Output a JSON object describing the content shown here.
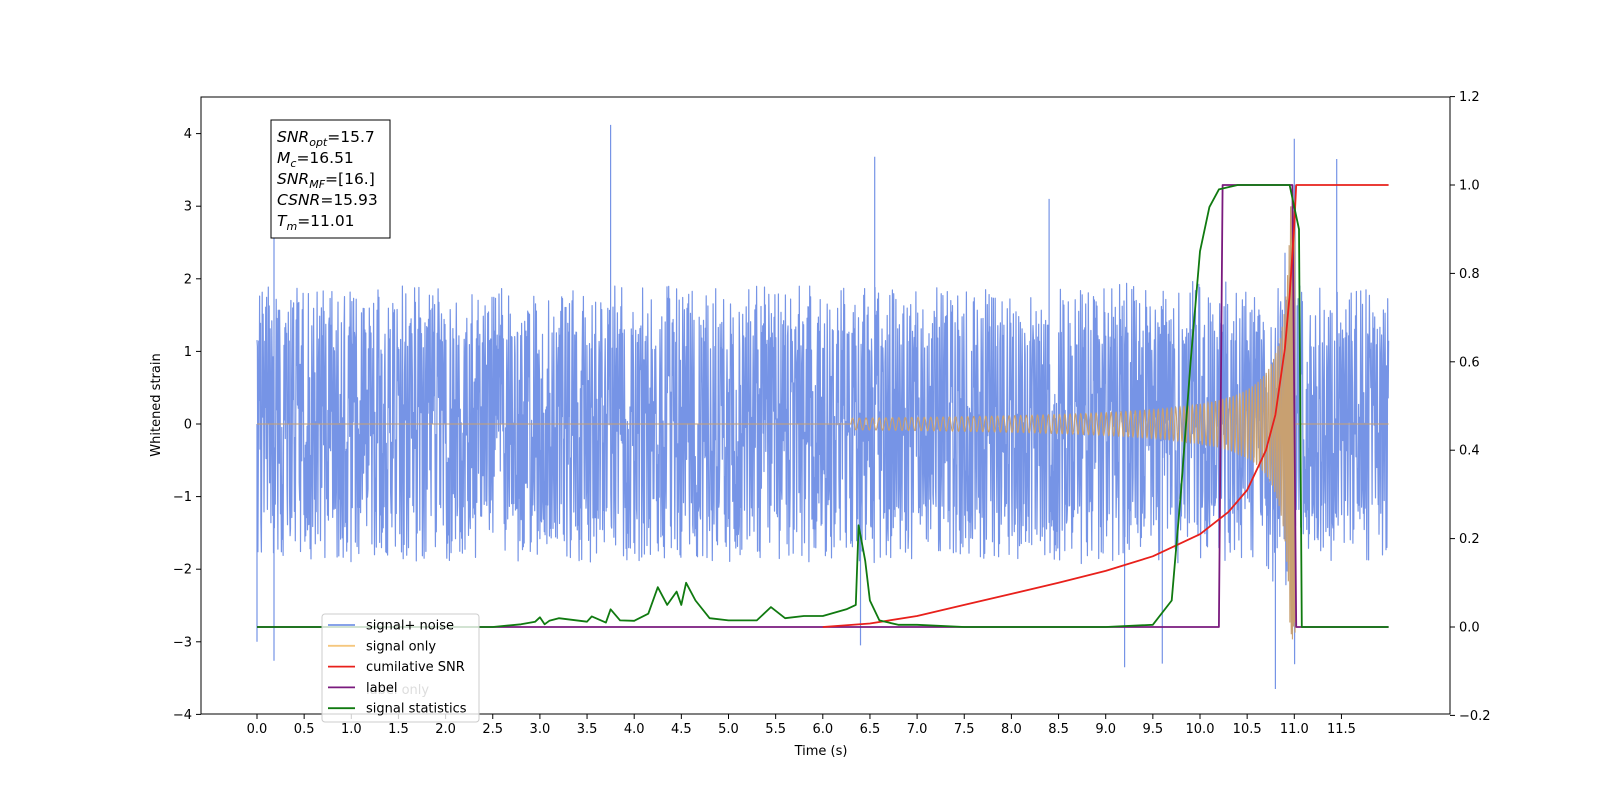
{
  "chart_data": {
    "type": "line",
    "xlabel": "Time (s)",
    "ylabel": "Whitened strain",
    "xlim": [
      -0.6,
      12.6
    ],
    "ylim": [
      -4,
      4.5
    ],
    "ylim_right": [
      -0.2,
      1.2
    ],
    "x_ticks": [
      "0.0",
      "0.5",
      "1.0",
      "1.5",
      "2.0",
      "2.5",
      "3.0",
      "3.5",
      "4.0",
      "4.5",
      "5.0",
      "5.5",
      "6.0",
      "6.5",
      "7.0",
      "7.5",
      "8.0",
      "8.5",
      "9.0",
      "9.5",
      "10.0",
      "10.5",
      "11.0",
      "11.5"
    ],
    "y_ticks_left": [
      "4",
      "3",
      "2",
      "1",
      "0",
      "−1",
      "−2",
      "−3",
      "−4"
    ],
    "y_ticks_right": [
      "1.2",
      "1.0",
      "0.8",
      "0.6",
      "0.4",
      "0.2",
      "0.0",
      "−0.2"
    ],
    "info_box": [
      {
        "base": "SNR",
        "sub": "opt",
        "value": "=15.7"
      },
      {
        "base": "M",
        "sub": "c",
        "value": "=16.51"
      },
      {
        "base": "SNR",
        "sub": "MF",
        "value": "=[16.]"
      },
      {
        "base": "CSNR",
        "sub": "",
        "value": "=15.93"
      },
      {
        "base": "T",
        "sub": "m",
        "value": "=11.01"
      }
    ],
    "legend": {
      "placement": "lower-left",
      "entries": [
        {
          "label": "signal+ noise",
          "color": "#7694e6"
        },
        {
          "label": "signal only",
          "color": "#f5c77e"
        },
        {
          "label": "cumilative SNR",
          "color": "#e8201b"
        },
        {
          "label": "label",
          "color": "#7a1a7e"
        },
        {
          "label": "signal statistics",
          "color": "#107a10"
        }
      ],
      "hidden_label": "label only"
    },
    "series": [
      {
        "name": "signal+ noise",
        "axis": "left",
        "color": "#7694e6",
        "x_range": [
          0.0,
          12.0
        ],
        "band": [
          -2.2,
          2.2
        ],
        "spikes": [
          [
            3.75,
            4.12
          ],
          [
            11.0,
            3.93
          ],
          [
            6.55,
            3.68
          ],
          [
            11.45,
            3.65
          ],
          [
            0.18,
            3.3
          ],
          [
            8.4,
            3.1
          ],
          [
            -0.0,
            -3.0
          ],
          [
            0.18,
            -3.26
          ],
          [
            10.8,
            -3.65
          ],
          [
            9.2,
            -3.35
          ],
          [
            9.6,
            -3.3
          ],
          [
            6.4,
            -3.05
          ]
        ]
      },
      {
        "name": "signal only",
        "axis": "left",
        "color": "#f5c77e",
        "chirp_start": 6.3,
        "merger": 11.01,
        "peak_amplitude": 3.0
      },
      {
        "name": "cumilative SNR",
        "axis": "right",
        "color": "#e8201b",
        "points": [
          [
            6.0,
            0.0
          ],
          [
            6.5,
            0.008
          ],
          [
            7.0,
            0.025
          ],
          [
            7.5,
            0.05
          ],
          [
            8.0,
            0.075
          ],
          [
            8.5,
            0.1
          ],
          [
            9.0,
            0.127
          ],
          [
            9.5,
            0.16
          ],
          [
            10.0,
            0.21
          ],
          [
            10.3,
            0.26
          ],
          [
            10.5,
            0.31
          ],
          [
            10.7,
            0.4
          ],
          [
            10.8,
            0.48
          ],
          [
            10.9,
            0.63
          ],
          [
            10.95,
            0.75
          ],
          [
            11.0,
            0.91
          ],
          [
            11.02,
            1.0
          ],
          [
            12.0,
            1.0
          ]
        ]
      },
      {
        "name": "label",
        "axis": "right",
        "color": "#7a1a7e",
        "points": [
          [
            0.0,
            0.0
          ],
          [
            10.2,
            0.0
          ],
          [
            10.24,
            1.0
          ],
          [
            10.98,
            1.0
          ],
          [
            11.02,
            0.0
          ],
          [
            12.0,
            0.0
          ]
        ]
      },
      {
        "name": "signal statistics",
        "axis": "right",
        "color": "#107a10",
        "points": [
          [
            0.0,
            0.0
          ],
          [
            2.0,
            0.0
          ],
          [
            2.5,
            0.0
          ],
          [
            2.8,
            0.006
          ],
          [
            2.95,
            0.012
          ],
          [
            3.0,
            0.022
          ],
          [
            3.05,
            0.006
          ],
          [
            3.1,
            0.014
          ],
          [
            3.2,
            0.02
          ],
          [
            3.5,
            0.012
          ],
          [
            3.55,
            0.024
          ],
          [
            3.7,
            0.01
          ],
          [
            3.75,
            0.04
          ],
          [
            3.85,
            0.015
          ],
          [
            4.0,
            0.014
          ],
          [
            4.15,
            0.03
          ],
          [
            4.25,
            0.09
          ],
          [
            4.35,
            0.05
          ],
          [
            4.45,
            0.08
          ],
          [
            4.5,
            0.05
          ],
          [
            4.55,
            0.1
          ],
          [
            4.65,
            0.06
          ],
          [
            4.8,
            0.02
          ],
          [
            5.0,
            0.015
          ],
          [
            5.3,
            0.015
          ],
          [
            5.45,
            0.045
          ],
          [
            5.6,
            0.02
          ],
          [
            5.8,
            0.025
          ],
          [
            6.0,
            0.025
          ],
          [
            6.25,
            0.04
          ],
          [
            6.35,
            0.05
          ],
          [
            6.38,
            0.23
          ],
          [
            6.45,
            0.15
          ],
          [
            6.5,
            0.06
          ],
          [
            6.6,
            0.015
          ],
          [
            6.8,
            0.005
          ],
          [
            7.0,
            0.005
          ],
          [
            7.5,
            0.0
          ],
          [
            9.0,
            0.0
          ],
          [
            9.5,
            0.005
          ],
          [
            9.7,
            0.06
          ],
          [
            9.8,
            0.31
          ],
          [
            9.9,
            0.6
          ],
          [
            10.0,
            0.85
          ],
          [
            10.1,
            0.95
          ],
          [
            10.2,
            0.99
          ],
          [
            10.4,
            1.0
          ],
          [
            10.95,
            1.0
          ],
          [
            11.05,
            0.9
          ],
          [
            11.08,
            0.0
          ],
          [
            12.0,
            0.0
          ]
        ]
      }
    ]
  }
}
